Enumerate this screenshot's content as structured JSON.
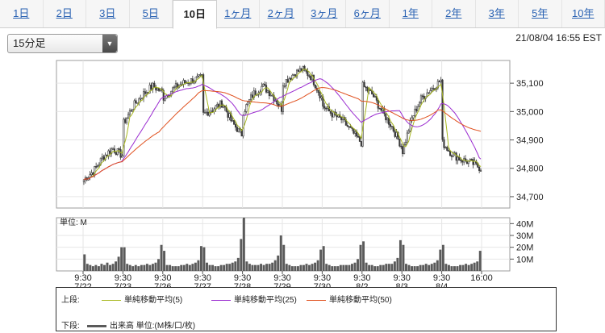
{
  "tabs": [
    "1日",
    "2日",
    "3日",
    "5日",
    "10日",
    "1ヶ月",
    "2ヶ月",
    "3ヶ月",
    "6ヶ月",
    "1年",
    "2年",
    "3年",
    "5年",
    "10年"
  ],
  "active_tab": 4,
  "interval_select": {
    "value": "15分足"
  },
  "timestamp": "21/08/04 16:55 EST",
  "colors": {
    "ma5": "#a8b820",
    "ma25": "#9a2ad0",
    "ma50": "#e0501e",
    "candle": "#3a3a3a",
    "volume": "#5a5a5a"
  },
  "icons": {
    "dropdown": "chevron-down-icon"
  },
  "chart_data": [
    {
      "type": "candlestick",
      "title": "",
      "y_ticks": [
        "35,100",
        "35,000",
        "34,900",
        "34,800",
        "34,700"
      ],
      "y_tick_values": [
        35100,
        35000,
        34900,
        34800,
        34700
      ],
      "ylim": [
        34660,
        35180
      ],
      "x_ticks": [
        {
          "time": "9:30",
          "date": "7/22"
        },
        {
          "time": "9:30",
          "date": "7/23"
        },
        {
          "time": "9:30",
          "date": "7/26"
        },
        {
          "time": "9:30",
          "date": "7/27"
        },
        {
          "time": "9:30",
          "date": "7/28"
        },
        {
          "time": "9:30",
          "date": "7/29"
        },
        {
          "time": "9:30",
          "date": "7/30"
        },
        {
          "time": "9:30",
          "date": "8/2"
        },
        {
          "time": "9:30",
          "date": "8/3"
        },
        {
          "time": "9:30",
          "date": "8/4"
        },
        {
          "time": "16:00",
          "date": ""
        }
      ],
      "session_close": [
        [
          34760,
          34790,
          34840,
          34870,
          34845
        ],
        [
          34960,
          35020,
          35060,
          35090,
          35070
        ],
        [
          35050,
          35080,
          35100,
          35110,
          35120
        ],
        [
          34990,
          35010,
          35030,
          34960,
          34920
        ],
        [
          35000,
          35060,
          35090,
          35060,
          35010
        ],
        [
          35100,
          35130,
          35150,
          35120,
          35050
        ],
        [
          35020,
          34990,
          34970,
          34930,
          34890
        ],
        [
          35090,
          35060,
          35000,
          34950,
          34880
        ],
        [
          34860,
          34980,
          35050,
          35080,
          35110
        ],
        [
          34890,
          34850,
          34830,
          34820,
          34800
        ]
      ],
      "grid": true
    },
    {
      "type": "bar",
      "unit_label": "単位: M",
      "y_ticks": [
        "40M",
        "30M",
        "20M",
        "10M"
      ],
      "y_tick_values": [
        40,
        30,
        20,
        10
      ],
      "ylim": [
        0,
        45
      ],
      "session_volume": [
        [
          14,
          6,
          5,
          4,
          5,
          4,
          6,
          5,
          7,
          5,
          6,
          8,
          12,
          20
        ],
        [
          20,
          6,
          5,
          4,
          5,
          4,
          5,
          5,
          6,
          5,
          6,
          7,
          10,
          22
        ],
        [
          17,
          5,
          5,
          4,
          4,
          4,
          5,
          5,
          6,
          5,
          6,
          7,
          9,
          21
        ],
        [
          20,
          7,
          5,
          5,
          4,
          4,
          5,
          5,
          6,
          6,
          7,
          8,
          11,
          27
        ],
        [
          45,
          8,
          6,
          5,
          5,
          5,
          6,
          5,
          6,
          6,
          7,
          9,
          13,
          30
        ],
        [
          22,
          6,
          5,
          4,
          4,
          4,
          5,
          5,
          6,
          5,
          6,
          7,
          9,
          18
        ],
        [
          21,
          6,
          5,
          4,
          4,
          4,
          5,
          5,
          5,
          5,
          6,
          7,
          10,
          22
        ],
        [
          25,
          7,
          5,
          5,
          4,
          4,
          5,
          5,
          6,
          6,
          6,
          8,
          11,
          26
        ],
        [
          22,
          6,
          5,
          4,
          4,
          4,
          5,
          5,
          6,
          5,
          6,
          7,
          9,
          18
        ],
        [
          22,
          6,
          5,
          4,
          4,
          4,
          5,
          5,
          6,
          5,
          6,
          7,
          8,
          17
        ]
      ],
      "grid": true
    }
  ],
  "legend": {
    "upper_label": "上段:",
    "lower_label": "下段:",
    "ma5": "単純移動平均(5)",
    "ma25": "単純移動平均(25)",
    "ma50": "単純移動平均(50)",
    "volume": "出来高 単位:(M株/口/枚)"
  }
}
